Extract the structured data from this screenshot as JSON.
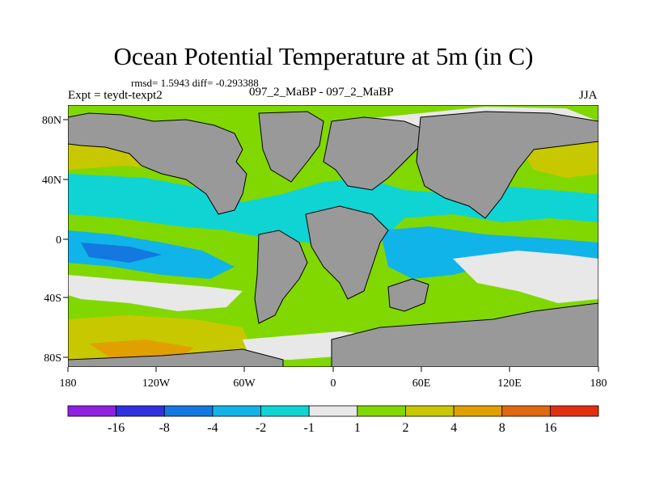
{
  "title": "Ocean Potential Temperature at 5m (in C)",
  "stats": "rmsd= 1.5943 diff= -0.293388",
  "experiment": "Expt = teydt-texpt2",
  "cases": "097_2_MaBP - 097_2_MaBP",
  "season": "JJA",
  "lat_labels": [
    "80N",
    "40N",
    "0",
    "40S",
    "80S"
  ],
  "lon_labels": [
    "180",
    "120W",
    "60W",
    "0",
    "60E",
    "120E",
    "180"
  ],
  "colorbar": {
    "colors": [
      "#9020e0",
      "#3030e0",
      "#1478e0",
      "#10b4e8",
      "#10d4d4",
      "#e8e8e8",
      "#80d800",
      "#c8c800",
      "#e0a000",
      "#e06810",
      "#e03010"
    ],
    "labels": [
      "-16",
      "-8",
      "-4",
      "-2",
      "-1",
      "1",
      "2",
      "4",
      "8",
      "16"
    ]
  },
  "palette": {
    "land": "#999999",
    "ocean_bg": "#80d800"
  }
}
